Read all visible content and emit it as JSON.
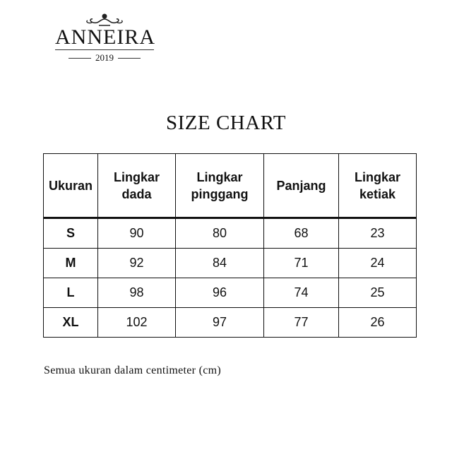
{
  "logo": {
    "brand": "ANNEIRA",
    "year": "2019"
  },
  "title": "SIZE CHART",
  "table": {
    "headers": [
      "Ukuran",
      "Lingkar dada",
      "Lingkar pinggang",
      "Panjang",
      "Lingkar ketiak"
    ],
    "rows": [
      [
        "S",
        "90",
        "80",
        "68",
        "23"
      ],
      [
        "M",
        "92",
        "84",
        "71",
        "24"
      ],
      [
        "L",
        "98",
        "96",
        "74",
        "25"
      ],
      [
        "XL",
        "102",
        "97",
        "77",
        "26"
      ]
    ]
  },
  "note": "Semua ukuran dalam centimeter (cm)"
}
